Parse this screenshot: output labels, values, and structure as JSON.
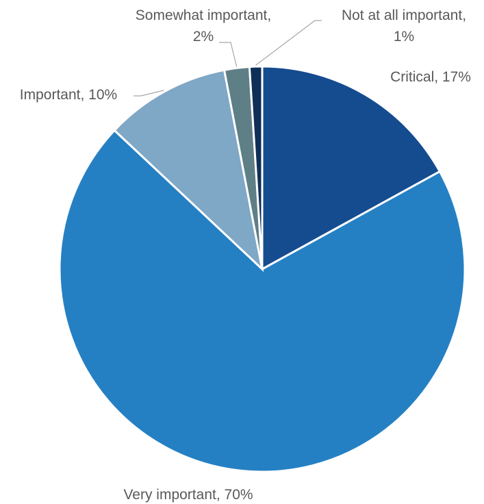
{
  "chart_data": {
    "type": "pie",
    "title": "",
    "slices": [
      {
        "label": "Critical",
        "value": 17,
        "value_label": "17%",
        "color": "#154c8f"
      },
      {
        "label": "Very important",
        "value": 70,
        "value_label": "70%",
        "color": "#2580c3"
      },
      {
        "label": "Important",
        "value": 10,
        "value_label": "10%",
        "color": "#7fa7c6"
      },
      {
        "label": "Somewhat important",
        "value": 2,
        "value_label": "2%",
        "color": "#5f7f86"
      },
      {
        "label": "Not at all important",
        "value": 1,
        "value_label": "1%",
        "color": "#0f2f57"
      }
    ],
    "start_angle": "12 o'clock",
    "direction": "clockwise",
    "legend": "none",
    "data_labels": "category name and percentage, outside the slices"
  }
}
